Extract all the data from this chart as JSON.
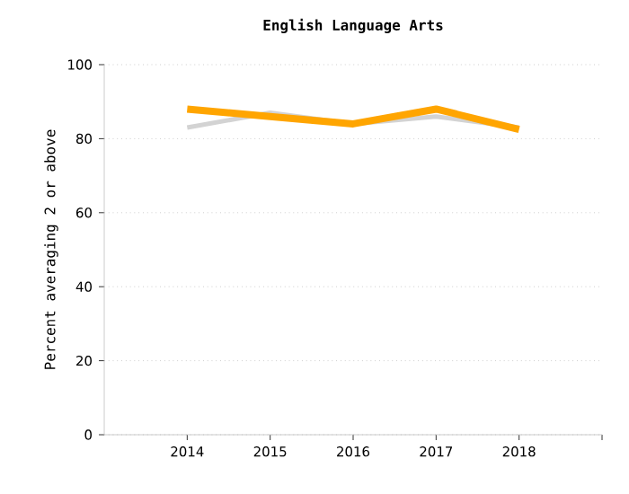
{
  "chart_data": {
    "type": "line",
    "title": "English Language Arts",
    "ylabel": "Percent averaging 2 or above",
    "x": [
      2014,
      2015,
      2016,
      2017,
      2018
    ],
    "series": [
      {
        "color": "#d3d3d3",
        "values": [
          83,
          87,
          84,
          86,
          83
        ]
      },
      {
        "color": "#ffa500",
        "values": [
          88,
          86,
          84,
          88,
          82.5
        ]
      }
    ],
    "xlim": [
      2013,
      2019
    ],
    "xticks": [
      2014,
      2015,
      2016,
      2017,
      2018,
      {
        "value": 2019,
        "label": null
      }
    ],
    "ylim": [
      0,
      100
    ],
    "yticks": [
      0,
      20,
      40,
      60,
      80,
      100
    ],
    "grid": "y",
    "marker": "none",
    "line_style": "solid"
  }
}
